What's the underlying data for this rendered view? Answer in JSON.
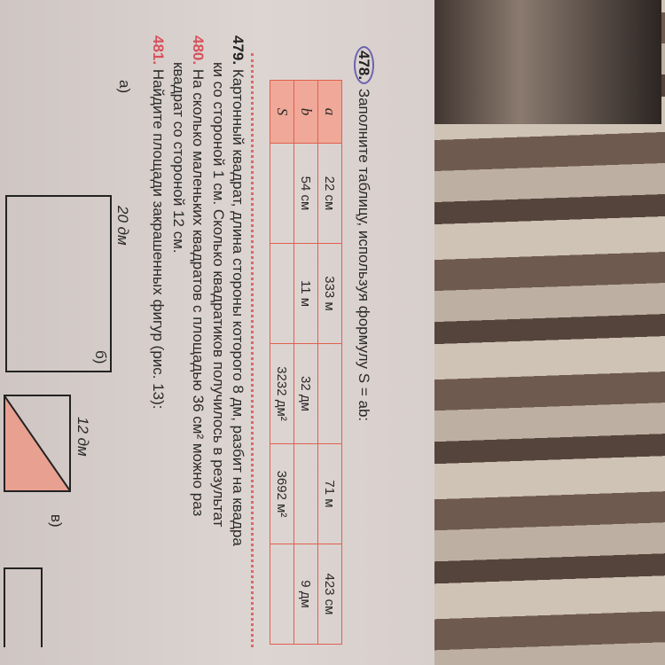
{
  "exercise_478": {
    "number": "478.",
    "text": "Заполните таблицу, используя формулу S = ab:",
    "table": {
      "row_labels": [
        "a",
        "b",
        "S"
      ],
      "columns": [
        {
          "a": "22 см",
          "b": "54 см",
          "S": ""
        },
        {
          "a": "333 м",
          "b": "11 м",
          "S": ""
        },
        {
          "a": "",
          "b": "32 дм",
          "S": "3232 дм²"
        },
        {
          "a": "71 м",
          "b": "",
          "S": "3692 м²"
        },
        {
          "a": "423 см",
          "b": "9 дм",
          "S": ""
        }
      ]
    }
  },
  "exercise_479": {
    "number": "479.",
    "line1": "Картонный квадрат, длина стороны которого 8 дм, разбит на квадра",
    "line2": "ки со стороной 1 см. Сколько квадратиков получилось в результат"
  },
  "exercise_480": {
    "number": "480.",
    "line1": "На сколько маленьких квадратов с площадью 36 см² можно раз",
    "line2": "квадрат со стороной 12 см."
  },
  "exercise_481": {
    "number": "481.",
    "text": "Найдите площади закрашенных фигур (рис. 13):",
    "figures": [
      {
        "label": "а)",
        "dimension": "20 дм"
      },
      {
        "label": "б)",
        "dimension": "12 дм"
      },
      {
        "label": "в)"
      }
    ]
  },
  "colors": {
    "accent": "#d8505a",
    "table_border": "#e0604e",
    "label_fill": "#f0a898",
    "paper": "#d9d0cd"
  }
}
